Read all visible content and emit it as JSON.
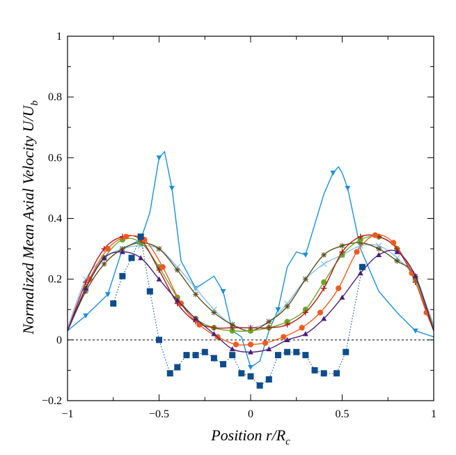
{
  "chart_data": {
    "type": "line",
    "title": "",
    "xlabel": "Position r/R",
    "xlabel_sub": "c",
    "ylabel": "Normalized Mean Axial Velocity U/U",
    "ylabel_sub": "b",
    "xlim": [
      -1,
      1
    ],
    "ylim": [
      -0.2,
      1
    ],
    "xticks": [
      -1,
      -0.5,
      0,
      0.5,
      1
    ],
    "xtick_labels": [
      "−1",
      "−0.5",
      "0",
      "0.5",
      "1"
    ],
    "yticks": [
      -0.2,
      0,
      0.2,
      0.4,
      0.6,
      0.8,
      1
    ],
    "ytick_labels": [
      "−0.2",
      "0",
      "0.2",
      "0.4",
      "0.6",
      "0.8",
      "1"
    ],
    "grid": false,
    "zero_line": true,
    "series": [
      {
        "name": "series-1",
        "color": "#1b8fd6",
        "marker": "triangle-down",
        "x": [
          -1,
          -0.9,
          -0.78,
          -0.7,
          -0.6,
          -0.55,
          -0.5,
          -0.47,
          -0.43,
          -0.38,
          -0.3,
          -0.25,
          -0.2,
          -0.15,
          -0.1,
          -0.05,
          0,
          0.05,
          0.1,
          0.15,
          0.2,
          0.25,
          0.3,
          0.35,
          0.4,
          0.45,
          0.48,
          0.5,
          0.53,
          0.6,
          0.7,
          0.8,
          0.9,
          1
        ],
        "y": [
          0.03,
          0.08,
          0.15,
          0.3,
          0.33,
          0.42,
          0.6,
          0.62,
          0.5,
          0.26,
          0.17,
          0.19,
          0.21,
          0.16,
          0.03,
          0.01,
          -0.09,
          -0.07,
          0.03,
          0.1,
          0.24,
          0.29,
          0.28,
          0.38,
          0.48,
          0.55,
          0.57,
          0.55,
          0.5,
          0.3,
          0.16,
          0.09,
          0.03,
          0.01
        ],
        "marker_x": [
          -0.9,
          -0.78,
          -0.6,
          -0.5,
          -0.43,
          -0.3,
          -0.15,
          0,
          0.15,
          0.3,
          0.45,
          0.53,
          0.9
        ],
        "curve": "linear"
      },
      {
        "name": "series-2",
        "color": "#87c0ea",
        "marker": "x",
        "x": [
          -1,
          -0.9,
          -0.8,
          -0.7,
          -0.6,
          -0.5,
          -0.4,
          -0.3,
          -0.2,
          -0.1,
          0,
          0.1,
          0.2,
          0.3,
          0.4,
          0.5,
          0.6,
          0.7,
          0.8,
          0.9,
          1
        ],
        "y": [
          0.04,
          0.2,
          0.27,
          0.3,
          0.31,
          0.3,
          0.24,
          0.17,
          0.1,
          0.05,
          0.04,
          0.06,
          0.12,
          0.2,
          0.25,
          0.28,
          0.31,
          0.31,
          0.27,
          0.2,
          0.05
        ]
      },
      {
        "name": "series-3",
        "color": "#5a4e1a",
        "marker": "asterisk",
        "x": [
          -1,
          -0.9,
          -0.8,
          -0.7,
          -0.6,
          -0.5,
          -0.4,
          -0.3,
          -0.2,
          -0.1,
          0,
          0.1,
          0.2,
          0.3,
          0.4,
          0.5,
          0.6,
          0.7,
          0.8,
          0.9,
          1
        ],
        "y": [
          0.03,
          0.16,
          0.25,
          0.3,
          0.32,
          0.3,
          0.23,
          0.15,
          0.09,
          0.05,
          0.03,
          0.06,
          0.11,
          0.2,
          0.28,
          0.31,
          0.32,
          0.3,
          0.26,
          0.21,
          0.03
        ]
      },
      {
        "name": "series-4",
        "color": "#6aa42a",
        "marker": "circle",
        "x": [
          -1,
          -0.9,
          -0.8,
          -0.7,
          -0.6,
          -0.5,
          -0.4,
          -0.3,
          -0.2,
          -0.1,
          0,
          0.1,
          0.2,
          0.3,
          0.4,
          0.5,
          0.6,
          0.7,
          0.8,
          0.9,
          1
        ],
        "y": [
          0.03,
          0.17,
          0.27,
          0.33,
          0.32,
          0.24,
          0.14,
          0.07,
          0.04,
          0.03,
          0.03,
          0.04,
          0.06,
          0.1,
          0.19,
          0.28,
          0.33,
          0.34,
          0.3,
          0.2,
          0.04
        ]
      },
      {
        "name": "series-5",
        "color": "#b01818",
        "marker": "plus",
        "x": [
          -1,
          -0.9,
          -0.8,
          -0.7,
          -0.6,
          -0.5,
          -0.4,
          -0.3,
          -0.2,
          -0.1,
          0,
          0.1,
          0.2,
          0.3,
          0.4,
          0.5,
          0.6,
          0.7,
          0.8,
          0.9,
          1
        ],
        "y": [
          0.03,
          0.19,
          0.3,
          0.34,
          0.33,
          0.23,
          0.12,
          0.06,
          0.04,
          0.04,
          0.04,
          0.04,
          0.05,
          0.09,
          0.17,
          0.29,
          0.34,
          0.34,
          0.3,
          0.19,
          0.03
        ]
      },
      {
        "name": "series-6",
        "color": "#f05a1e",
        "marker": "circle",
        "x": [
          -1,
          -0.88,
          -0.78,
          -0.68,
          -0.58,
          -0.48,
          -0.38,
          -0.28,
          -0.18,
          -0.08,
          0,
          0.08,
          0.18,
          0.28,
          0.38,
          0.48,
          0.58,
          0.68,
          0.78,
          0.88,
          0.96,
          1
        ],
        "y": [
          0.03,
          0.2,
          0.3,
          0.34,
          0.33,
          0.24,
          0.12,
          0.05,
          0.01,
          -0.015,
          -0.015,
          -0.01,
          0.01,
          0.04,
          0.09,
          0.17,
          0.29,
          0.345,
          0.32,
          0.22,
          0.09,
          0.03
        ]
      },
      {
        "name": "series-7",
        "color": "#4a1e78",
        "marker": "triangle-up",
        "x": [
          -1,
          -0.9,
          -0.8,
          -0.7,
          -0.6,
          -0.5,
          -0.4,
          -0.3,
          -0.2,
          -0.1,
          0,
          0.1,
          0.2,
          0.3,
          0.4,
          0.5,
          0.6,
          0.7,
          0.8,
          0.9,
          1
        ],
        "y": [
          0.03,
          0.17,
          0.27,
          0.29,
          0.27,
          0.2,
          0.13,
          0.07,
          0.02,
          -0.03,
          -0.04,
          -0.03,
          0,
          0.02,
          0.07,
          0.14,
          0.22,
          0.28,
          0.29,
          0.21,
          0.03
        ]
      },
      {
        "name": "series-8",
        "color": "#0f4c8a",
        "marker": "square",
        "x": [
          -0.75,
          -0.7,
          -0.65,
          -0.6,
          -0.55,
          -0.5,
          -0.44,
          -0.4,
          -0.35,
          -0.3,
          -0.25,
          -0.2,
          -0.15,
          -0.1,
          -0.05,
          0,
          0.05,
          0.1,
          0.15,
          0.2,
          0.25,
          0.3,
          0.35,
          0.4,
          0.47,
          0.52,
          0.61
        ],
        "y": [
          0.12,
          0.21,
          0.27,
          0.34,
          0.16,
          0,
          -0.11,
          -0.09,
          -0.05,
          -0.05,
          -0.04,
          -0.06,
          -0.08,
          -0.05,
          -0.11,
          -0.12,
          -0.15,
          -0.13,
          -0.05,
          -0.04,
          -0.04,
          -0.05,
          -0.1,
          -0.11,
          -0.11,
          -0.04,
          0.24
        ],
        "line_style": "dotted",
        "curve": "linear"
      }
    ]
  }
}
